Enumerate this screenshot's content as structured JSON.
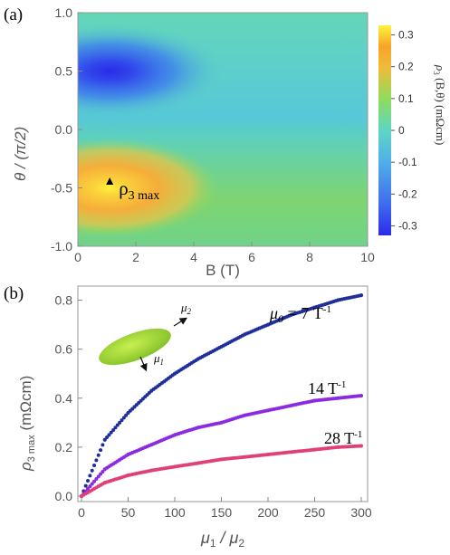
{
  "panel_labels": [
    "(a)",
    "(b)"
  ],
  "chart_data": [
    {
      "type": "heatmap",
      "panel": "(a)",
      "xlabel": "B (T)",
      "ylabel": "θ / (π/2)",
      "xlim": [
        0,
        10
      ],
      "ylim": [
        -1.0,
        1.0
      ],
      "xticks": [
        "0",
        "2",
        "4",
        "6",
        "8",
        "10"
      ],
      "yticks": [
        "1.0",
        "0.5",
        "0.0",
        "-0.5",
        "-1.0"
      ],
      "colorbar": {
        "label_parts": [
          "ρ",
          "3",
          " (B,θ) (mΩcm)"
        ],
        "range": [
          -0.33,
          0.33
        ],
        "ticks": [
          "0.3",
          "0.2",
          "0.1",
          "0",
          "-0.1",
          "-0.2",
          "-0.3"
        ],
        "colors": [
          "#2a2be8",
          "#3f6cf0",
          "#4fb0e8",
          "#5ed6c4",
          "#8fdc5c",
          "#f0bb3a",
          "#f7a428",
          "#fff23a"
        ]
      },
      "features": {
        "maximum": {
          "B": 1.1,
          "theta": -0.5,
          "value": 0.33
        },
        "minimum": {
          "B": 1.1,
          "theta": 0.5,
          "value": -0.33
        }
      },
      "annotation": {
        "symbol": "ρ",
        "subscript": "3 max",
        "B": 1.1,
        "theta": -0.45
      }
    },
    {
      "type": "scatter",
      "panel": "(b)",
      "xlabel_parts": [
        "μ",
        "1",
        " / μ",
        "2"
      ],
      "ylabel_parts": [
        "ρ",
        "3 max",
        " (mΩcm)"
      ],
      "xlim": [
        0,
        300
      ],
      "ylim": [
        0,
        0.85
      ],
      "xticks": [
        "0",
        "50",
        "100",
        "150",
        "200",
        "250",
        "300"
      ],
      "yticks": [
        "0.0",
        "0.2",
        "0.4",
        "0.6",
        "0.8"
      ],
      "series": [
        {
          "name": "μ0 = 7 T-1",
          "label_parts": [
            "μ",
            "0",
            " = 7 T",
            "-1"
          ],
          "color": "#1f2e9c",
          "x": [
            0,
            25,
            50,
            75,
            100,
            125,
            150,
            175,
            200,
            225,
            250,
            275,
            300
          ],
          "values": [
            0.0,
            0.23,
            0.34,
            0.43,
            0.5,
            0.56,
            0.61,
            0.66,
            0.7,
            0.74,
            0.77,
            0.8,
            0.82
          ]
        },
        {
          "name": "14 T-1",
          "label_parts": [
            "14 T",
            "-1"
          ],
          "color": "#8a2be2",
          "x": [
            0,
            25,
            50,
            75,
            100,
            125,
            150,
            175,
            200,
            225,
            250,
            275,
            300
          ],
          "values": [
            0.0,
            0.11,
            0.17,
            0.21,
            0.25,
            0.28,
            0.3,
            0.33,
            0.35,
            0.37,
            0.39,
            0.4,
            0.41
          ]
        },
        {
          "name": "28 T-1",
          "label_parts": [
            "28 T",
            "-1"
          ],
          "color": "#e0407a",
          "x": [
            0,
            25,
            50,
            75,
            100,
            125,
            150,
            175,
            200,
            225,
            250,
            275,
            300
          ],
          "values": [
            0.0,
            0.055,
            0.085,
            0.105,
            0.12,
            0.135,
            0.15,
            0.16,
            0.17,
            0.18,
            0.19,
            0.2,
            0.205
          ]
        }
      ],
      "inset": {
        "shape": "ellipse",
        "color": "#9bd83a",
        "arrows": [
          {
            "symbol": "μ",
            "subscript": "2"
          },
          {
            "symbol": "μ",
            "subscript": "1"
          }
        ]
      }
    }
  ]
}
